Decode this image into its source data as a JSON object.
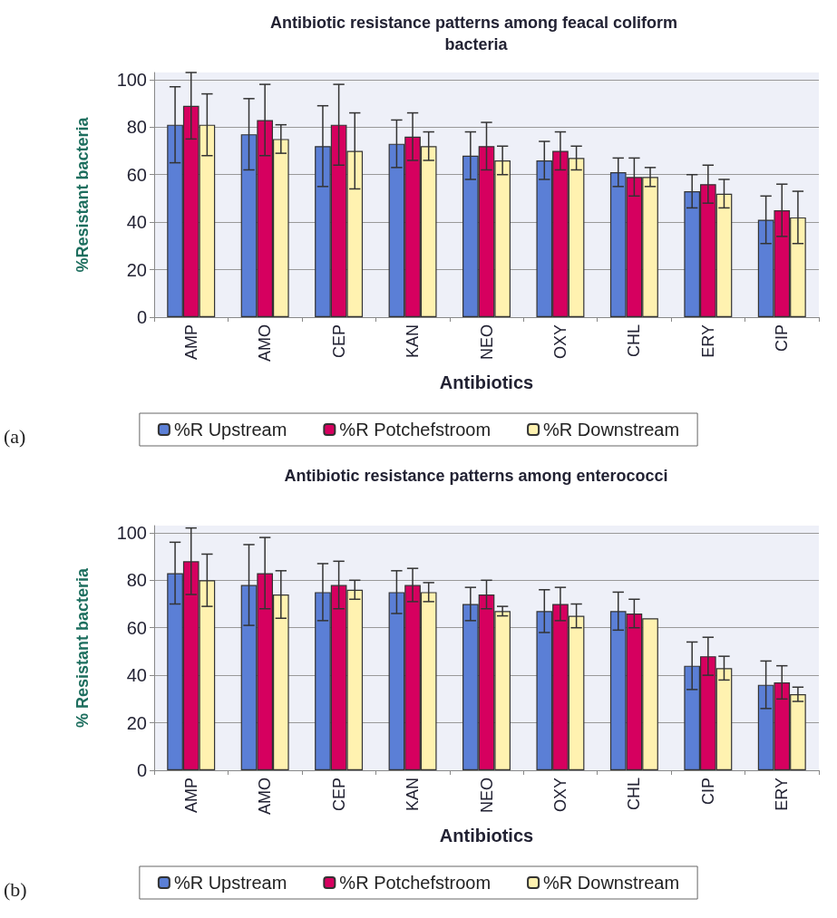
{
  "chart_data": [
    {
      "type": "bar",
      "title": "Antibiotic resistance patterns among feacal coliform bacteria",
      "xlabel": "Antibiotics",
      "ylabel": "%Resistant bacteria",
      "categories": [
        "AMP",
        "AMO",
        "CEP",
        "KAN",
        "NEO",
        "OXY",
        "CHL",
        "ERY",
        "CIP"
      ],
      "ylim": [
        0,
        103
      ],
      "yticks": [
        0,
        20,
        40,
        60,
        80,
        100
      ],
      "grid": "y",
      "legend": "bottom",
      "annotations": [
        "(a)"
      ],
      "series": [
        {
          "name": "%R Upstream",
          "color": "#5b7fd6",
          "values": [
            81,
            77,
            72,
            73,
            68,
            66,
            61,
            53,
            41
          ],
          "errors": [
            16,
            15,
            17,
            10,
            10,
            8,
            6,
            7,
            10
          ]
        },
        {
          "name": "%R Potchefstroom",
          "color": "#d6005f",
          "values": [
            89,
            83,
            81,
            76,
            72,
            70,
            59,
            56,
            45
          ],
          "errors": [
            14,
            15,
            17,
            10,
            10,
            8,
            8,
            8,
            11
          ]
        },
        {
          "name": "%R Downstream",
          "color": "#fff2b0",
          "values": [
            81,
            75,
            70,
            72,
            66,
            67,
            59,
            52,
            42
          ],
          "errors": [
            13,
            6,
            16,
            6,
            6,
            5,
            4,
            6,
            11
          ]
        }
      ]
    },
    {
      "type": "bar",
      "title": "Antibiotic resistance patterns among enterococci",
      "xlabel": "Antibiotics",
      "ylabel": "% Resistant bacteria",
      "categories": [
        "AMP",
        "AMO",
        "CEP",
        "KAN",
        "NEO",
        "OXY",
        "CHL",
        "CIP",
        "ERY"
      ],
      "ylim": [
        0,
        103
      ],
      "yticks": [
        0,
        20,
        40,
        60,
        80,
        100
      ],
      "grid": "y",
      "legend": "bottom",
      "annotations": [
        "(b)"
      ],
      "series": [
        {
          "name": "%R Upstream",
          "color": "#5b7fd6",
          "values": [
            83,
            78,
            75,
            75,
            70,
            67,
            67,
            44,
            36
          ],
          "errors": [
            13,
            17,
            12,
            9,
            7,
            9,
            8,
            10,
            10
          ]
        },
        {
          "name": "%R Potchefstroom",
          "color": "#d6005f",
          "values": [
            88,
            83,
            78,
            78,
            74,
            70,
            66,
            48,
            37
          ],
          "errors": [
            14,
            15,
            10,
            7,
            6,
            7,
            6,
            8,
            7
          ]
        },
        {
          "name": "%R Downstream",
          "color": "#fff2b0",
          "values": [
            80,
            74,
            76,
            75,
            67,
            65,
            64,
            43,
            32
          ],
          "errors": [
            11,
            10,
            4,
            4,
            2,
            5,
            null,
            5,
            3
          ]
        }
      ]
    }
  ]
}
